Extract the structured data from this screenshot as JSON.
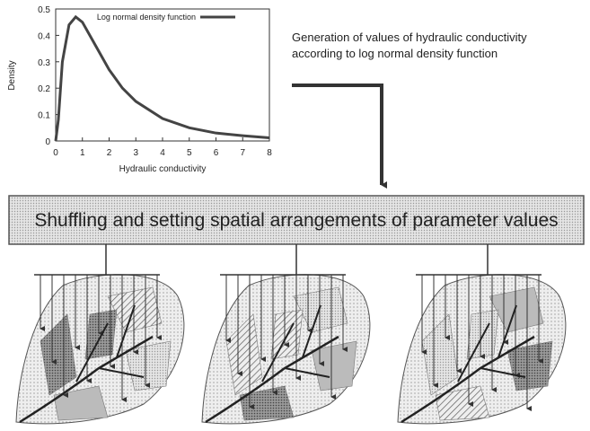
{
  "chart_data": {
    "type": "line",
    "x_label": "Hydraulic conductivity",
    "y_label": "Density",
    "series": [
      {
        "name": "Log normal density function",
        "color": "#444444",
        "x": [
          0,
          0.1,
          0.25,
          0.5,
          0.75,
          1,
          1.5,
          2,
          2.5,
          3,
          4,
          5,
          6,
          7,
          8
        ],
        "values": [
          0,
          0.08,
          0.3,
          0.44,
          0.47,
          0.45,
          0.36,
          0.27,
          0.2,
          0.15,
          0.085,
          0.05,
          0.03,
          0.02,
          0.012
        ]
      }
    ],
    "xlim": [
      0,
      8
    ],
    "xticks": [
      0,
      1,
      2,
      3,
      4,
      5,
      6,
      7,
      8
    ],
    "ylim": [
      0,
      0.5
    ],
    "yticks": [
      0,
      0.1,
      0.2,
      0.3,
      0.4,
      0.5
    ]
  },
  "description_lines": [
    "Generation of values of hydraulic conductivity",
    "according to log normal density function"
  ],
  "box_label": "Shuffling and setting spatial arrangements of parameter values"
}
